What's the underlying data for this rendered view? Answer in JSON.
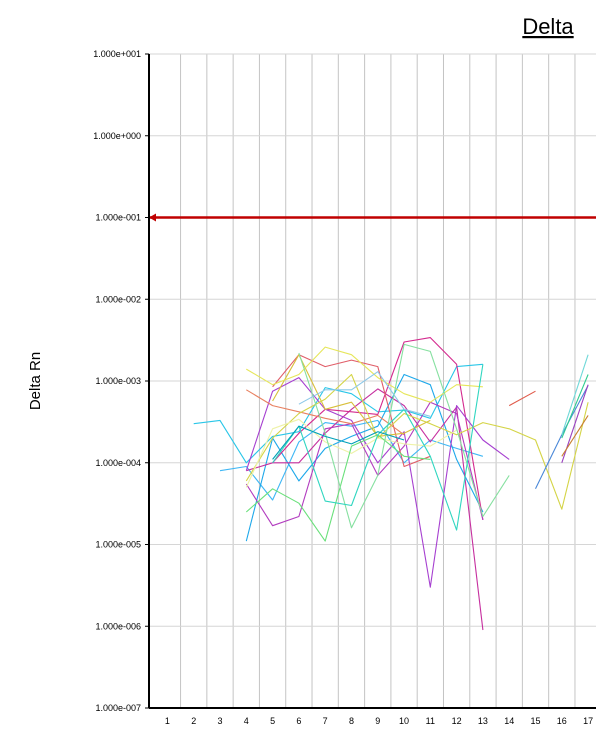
{
  "chart_data": {
    "type": "line",
    "title": "Delta",
    "xlabel": "",
    "ylabel": "Delta Rn",
    "y_scale": "log",
    "ylim": [
      1e-07,
      10
    ],
    "y_ticks": [
      1e-07,
      1e-06,
      1e-05,
      0.0001,
      0.001,
      0.01,
      0.1,
      1,
      10
    ],
    "y_tick_labels": [
      "1.000e-007",
      "1.000e-006",
      "1.000e-005",
      "1.000e-004",
      "1.000e-003",
      "1.000e-002",
      "1.000e-001",
      "1.000e+000",
      "1.000e+001"
    ],
    "x_ticks": [
      1,
      2,
      3,
      4,
      5,
      6,
      7,
      8,
      9,
      10,
      11,
      12,
      13,
      14,
      15,
      16,
      17
    ],
    "x_tick_labels": [
      "1",
      "2",
      "3",
      "4",
      "5",
      "6",
      "7",
      "8",
      "9",
      "10",
      "11",
      "12",
      "13",
      "14",
      "15",
      "16",
      "17"
    ],
    "xlim": [
      0.3,
      17.3
    ],
    "grid": true,
    "threshold": {
      "value": 0.1,
      "color": "#c00000"
    },
    "series": [
      {
        "color": "#29c6e8",
        "points": [
          [
            2,
            0.0003
          ],
          [
            3,
            0.00033
          ],
          [
            4,
            0.0001
          ],
          [
            5,
            0.00021
          ],
          [
            6,
            0.00024
          ],
          [
            7,
            0.00083
          ],
          [
            8,
            0.0007
          ],
          [
            9,
            0.00042
          ],
          [
            10,
            0.00044
          ],
          [
            11,
            0.00035
          ],
          [
            12,
            0.0015
          ],
          [
            13,
            0.0016
          ]
        ]
      },
      {
        "color": "#3fb7f5",
        "points": [
          [
            3,
            8e-05
          ],
          [
            4,
            9e-05
          ],
          [
            5,
            3.5e-05
          ],
          [
            6,
            0.00018
          ],
          [
            7,
            0.00031
          ],
          [
            8,
            0.00028
          ],
          [
            9,
            0.00033
          ],
          [
            10,
            0.0001
          ],
          [
            11,
            0.00019
          ],
          [
            12,
            0.00015
          ],
          [
            13,
            0.00012
          ]
        ]
      },
      {
        "color": "#1ea8ea",
        "points": [
          [
            4,
            1.1e-05
          ],
          [
            5,
            0.0002
          ],
          [
            6,
            6e-05
          ],
          [
            7,
            0.00015
          ],
          [
            8,
            0.00021
          ],
          [
            9,
            0.00028
          ],
          [
            10,
            0.0012
          ],
          [
            11,
            0.0009
          ],
          [
            12,
            0.00011
          ],
          [
            13,
            2.5e-05
          ]
        ]
      },
      {
        "color": "#c62f9f",
        "points": [
          [
            4,
            8e-05
          ],
          [
            5,
            0.0001
          ],
          [
            6,
            0.0001
          ],
          [
            7,
            0.00023
          ],
          [
            8,
            0.00045
          ],
          [
            9,
            0.0008
          ],
          [
            10,
            0.0005
          ],
          [
            11,
            0.00018
          ],
          [
            12,
            0.00048
          ],
          [
            13,
            9e-07
          ]
        ]
      },
      {
        "color": "#d4298e",
        "points": [
          [
            5,
            0.0001
          ],
          [
            6,
            0.00023
          ],
          [
            7,
            0.00045
          ],
          [
            8,
            0.00042
          ],
          [
            9,
            0.00039
          ],
          [
            10,
            0.003
          ],
          [
            11,
            0.0034
          ],
          [
            12,
            0.0016
          ],
          [
            13,
            2e-05
          ]
        ]
      },
      {
        "color": "#a63fd0",
        "points": [
          [
            4,
            8e-05
          ],
          [
            5,
            0.00075
          ],
          [
            6,
            0.0011
          ],
          [
            7,
            0.00045
          ],
          [
            8,
            0.00033
          ],
          [
            9,
            0.0001
          ],
          [
            10,
            0.00024
          ],
          [
            11,
            3e-06
          ],
          [
            12,
            0.0005
          ],
          [
            13,
            0.00019
          ],
          [
            14,
            0.00011
          ]
        ]
      },
      {
        "color": "#b23cbf",
        "points": [
          [
            4,
            5.5e-05
          ],
          [
            5,
            1.7e-05
          ],
          [
            6,
            2.2e-05
          ],
          [
            7,
            0.00026
          ],
          [
            8,
            0.0003
          ],
          [
            9,
            7e-05
          ],
          [
            10,
            0.00016
          ],
          [
            11,
            0.00055
          ],
          [
            12,
            0.0004
          ],
          [
            13,
            2e-05
          ]
        ]
      },
      {
        "color": "#e05d68",
        "points": [
          [
            5,
            0.00085
          ],
          [
            6,
            0.0021
          ],
          [
            7,
            0.0015
          ],
          [
            8,
            0.0018
          ],
          [
            9,
            0.0015
          ],
          [
            10,
            9e-05
          ],
          [
            11,
            0.00012
          ]
        ]
      },
      {
        "color": "#e88060",
        "points": [
          [
            4,
            0.00078
          ],
          [
            5,
            0.0005
          ],
          [
            6,
            0.00042
          ],
          [
            7,
            0.00035
          ],
          [
            8,
            0.0003
          ],
          [
            9,
            0.00038
          ],
          [
            10,
            0.00022
          ]
        ]
      },
      {
        "color": "#d8bf3a",
        "points": [
          [
            5,
            0.00057
          ],
          [
            6,
            0.0021
          ],
          [
            7,
            0.00045
          ],
          [
            8,
            0.00055
          ],
          [
            9,
            0.00021
          ],
          [
            10,
            0.00023
          ],
          [
            11,
            0.00033
          ]
        ]
      },
      {
        "color": "#e6e65a",
        "points": [
          [
            4,
            0.0014
          ],
          [
            5,
            0.0009
          ],
          [
            6,
            0.0012
          ],
          [
            7,
            0.0026
          ],
          [
            8,
            0.0021
          ],
          [
            9,
            0.0011
          ],
          [
            10,
            0.0007
          ],
          [
            11,
            0.00055
          ],
          [
            12,
            0.0009
          ],
          [
            13,
            0.00085
          ]
        ]
      },
      {
        "color": "#d4d446",
        "points": [
          [
            4,
            6e-05
          ],
          [
            5,
            0.0002
          ],
          [
            6,
            0.0004
          ],
          [
            7,
            0.0006
          ],
          [
            8,
            0.0012
          ],
          [
            9,
            0.0002
          ],
          [
            10,
            0.0004
          ],
          [
            11,
            0.0003
          ],
          [
            12,
            0.00022
          ],
          [
            13,
            0.00031
          ],
          [
            14,
            0.00026
          ],
          [
            15,
            0.00019
          ],
          [
            16,
            2.7e-05
          ],
          [
            17,
            0.00055
          ]
        ]
      },
      {
        "color": "#eef2a8",
        "points": [
          [
            4,
            5e-05
          ],
          [
            5,
            0.00026
          ],
          [
            6,
            0.00034
          ],
          [
            7,
            0.00018
          ],
          [
            8,
            0.00013
          ],
          [
            9,
            0.0002
          ],
          [
            10,
            0.00017
          ],
          [
            11,
            0.00016
          ],
          [
            12,
            0.00025
          ]
        ]
      },
      {
        "color": "#69e07a",
        "points": [
          [
            4,
            2.5e-05
          ],
          [
            5,
            4.8e-05
          ],
          [
            6,
            3.2e-05
          ],
          [
            7,
            1.1e-05
          ],
          [
            8,
            0.00016
          ],
          [
            9,
            0.00022
          ],
          [
            10,
            0.00012
          ],
          [
            11,
            0.00011
          ]
        ]
      },
      {
        "color": "#86e0a0",
        "points": [
          [
            6,
            0.0022
          ],
          [
            7,
            0.00023
          ],
          [
            8,
            1.6e-05
          ],
          [
            9,
            7e-05
          ],
          [
            10,
            0.0028
          ],
          [
            11,
            0.0023
          ],
          [
            12,
            0.00026
          ],
          [
            13,
            2.2e-05
          ],
          [
            14,
            7e-05
          ]
        ]
      },
      {
        "color": "#30d6c0",
        "points": [
          [
            5,
            0.0001
          ],
          [
            6,
            0.00028
          ],
          [
            7,
            3.4e-05
          ],
          [
            8,
            3e-05
          ],
          [
            9,
            0.00022
          ],
          [
            10,
            0.00045
          ],
          [
            11,
            0.00012
          ],
          [
            12,
            1.5e-05
          ],
          [
            13,
            0.0016
          ]
        ]
      },
      {
        "color": "#00a0b8",
        "points": [
          [
            5,
            0.00011
          ],
          [
            6,
            0.00028
          ],
          [
            7,
            0.00021
          ],
          [
            8,
            0.00017
          ],
          [
            9,
            0.00024
          ],
          [
            10,
            0.00019
          ]
        ]
      },
      {
        "color": "#8cc8e8",
        "points": [
          [
            6,
            0.00052
          ],
          [
            7,
            0.00078
          ],
          [
            8,
            0.00078
          ],
          [
            9,
            0.0013
          ],
          [
            10,
            0.00045
          ],
          [
            11,
            0.00037
          ]
        ]
      },
      {
        "color": "#4a88d8",
        "points": [
          [
            15,
            4.8e-05
          ],
          [
            16,
            0.00022
          ],
          [
            17,
            0.00088
          ]
        ]
      },
      {
        "color": "#2ecc90",
        "points": [
          [
            16,
            0.0002
          ],
          [
            17,
            0.0012
          ]
        ]
      },
      {
        "color": "#6fd8d8",
        "points": [
          [
            16,
            0.00022
          ],
          [
            17,
            0.0021
          ]
        ]
      },
      {
        "color": "#9a40c0",
        "points": [
          [
            16,
            0.0001
          ],
          [
            17,
            0.0009
          ]
        ]
      },
      {
        "color": "#c88030",
        "points": [
          [
            16,
            0.00012
          ],
          [
            17,
            0.00038
          ]
        ]
      },
      {
        "color": "#e05a4a",
        "points": [
          [
            14,
            0.0005
          ],
          [
            15,
            0.00075
          ]
        ]
      }
    ]
  }
}
